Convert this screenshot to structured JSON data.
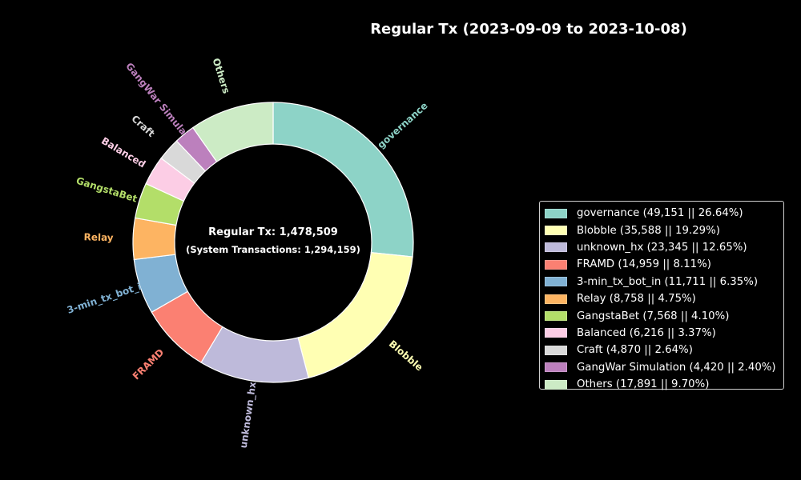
{
  "chart_data": {
    "type": "pie",
    "style": "donut",
    "title": "Regular Tx (2023-09-09 to 2023-10-08)",
    "center_text": {
      "line1": "Regular Tx: 1,478,509",
      "line2": "(System Transactions: 1,294,159)"
    },
    "legend_position": "right",
    "slices": [
      {
        "label": "governance",
        "value": 49151,
        "percent": 26.64,
        "color": "#8dd3c7",
        "legend": "governance (49,151 || 26.64%)"
      },
      {
        "label": "Blobble",
        "value": 35588,
        "percent": 19.29,
        "color": "#ffffb3",
        "legend": "Blobble (35,588 || 19.29%)"
      },
      {
        "label": "unknown_hx",
        "value": 23345,
        "percent": 12.65,
        "color": "#bebada",
        "legend": "unknown_hx (23,345 || 12.65%)"
      },
      {
        "label": "FRAMD",
        "value": 14959,
        "percent": 8.11,
        "color": "#fb8072",
        "legend": "FRAMD (14,959 || 8.11%)"
      },
      {
        "label": "3-min_tx_bot_in",
        "value": 11711,
        "percent": 6.35,
        "color": "#80b1d3",
        "legend": "3-min_tx_bot_in (11,711 || 6.35%)"
      },
      {
        "label": "Relay",
        "value": 8758,
        "percent": 4.75,
        "color": "#fdb462",
        "legend": "Relay (8,758 || 4.75%)"
      },
      {
        "label": "GangstaBet",
        "value": 7568,
        "percent": 4.1,
        "color": "#b3de69",
        "legend": "GangstaBet (7,568 || 4.10%)"
      },
      {
        "label": "Balanced",
        "value": 6216,
        "percent": 3.37,
        "color": "#fccde5",
        "legend": "Balanced (6,216 || 3.37%)"
      },
      {
        "label": "Craft",
        "value": 4870,
        "percent": 2.64,
        "color": "#d9d9d9",
        "legend": "Craft (4,870 || 2.64%)"
      },
      {
        "label": "GangWar Simulation",
        "value": 4420,
        "percent": 2.4,
        "color": "#bc80bd",
        "legend": "GangWar Simulation (4,420 || 2.40%)"
      },
      {
        "label": "Others",
        "value": 17891,
        "percent": 9.7,
        "color": "#ccebc5",
        "legend": "Others (17,891 || 9.70%)"
      }
    ]
  }
}
